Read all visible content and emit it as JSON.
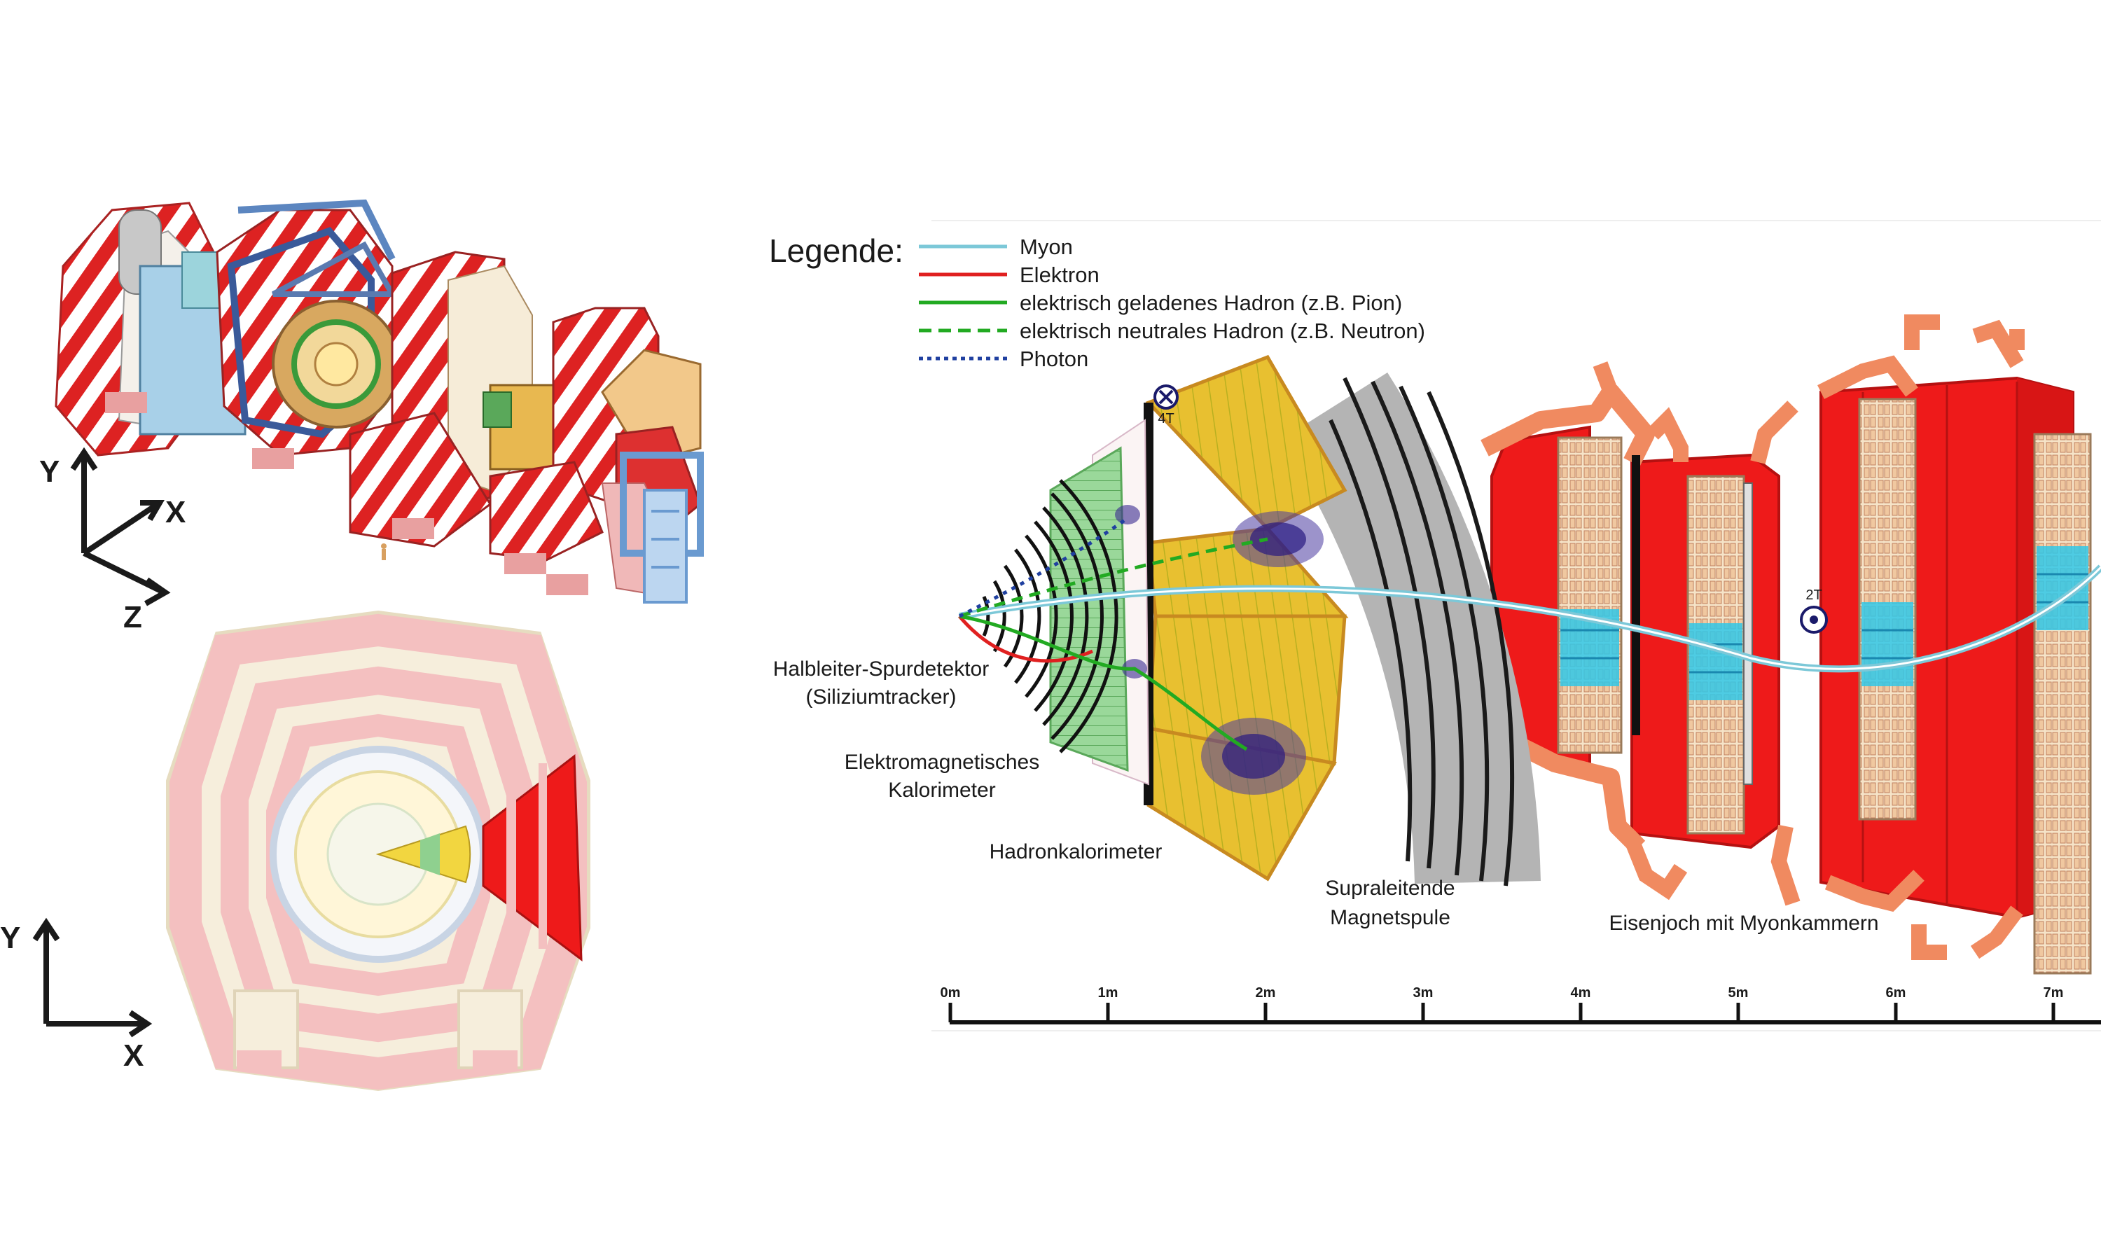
{
  "legend": {
    "title": "Legende:",
    "items": [
      {
        "label": "Myon",
        "color": "#7cc8d8",
        "style": "solid"
      },
      {
        "label": "Elektron",
        "color": "#e02020",
        "style": "solid"
      },
      {
        "label": "elektrisch geladenes Hadron (z.B. Pion)",
        "color": "#22aa22",
        "style": "solid"
      },
      {
        "label": "elektrisch neutrales Hadron (z.B. Neutron)",
        "color": "#22aa22",
        "style": "dashed"
      },
      {
        "label": "Photon",
        "color": "#2040a0",
        "style": "dotted"
      }
    ]
  },
  "labels": {
    "tracker_line1": "Halbleiter-Spurdetektor",
    "tracker_line2": "(Siliziumtracker)",
    "ecal_line1": "Elektromagnetisches",
    "ecal_line2": "Kalorimeter",
    "hcal": "Hadronkalorimeter",
    "solenoid_line1": "Supraleitende",
    "solenoid_line2": "Magnetspule",
    "yoke": "Eisenjoch mit Myonkammern",
    "field_inner": "4T",
    "field_outer": "2T"
  },
  "scale": {
    "ticks": [
      "0m",
      "1m",
      "2m",
      "3m",
      "4m",
      "5m",
      "6m",
      "7m"
    ]
  },
  "axes_3d": {
    "y": "Y",
    "x": "X",
    "z": "Z"
  },
  "axes_2d": {
    "y": "Y",
    "x": "X"
  },
  "colors": {
    "magnet_red": "#ee1a1a",
    "yoke_orange": "#f0a070",
    "hcal_yellow": "#e8c030",
    "ecal_green": "#8fd08f",
    "solenoid_gray": "#b4b4b4",
    "muon_chamber_cyan": "#30c8e8"
  }
}
